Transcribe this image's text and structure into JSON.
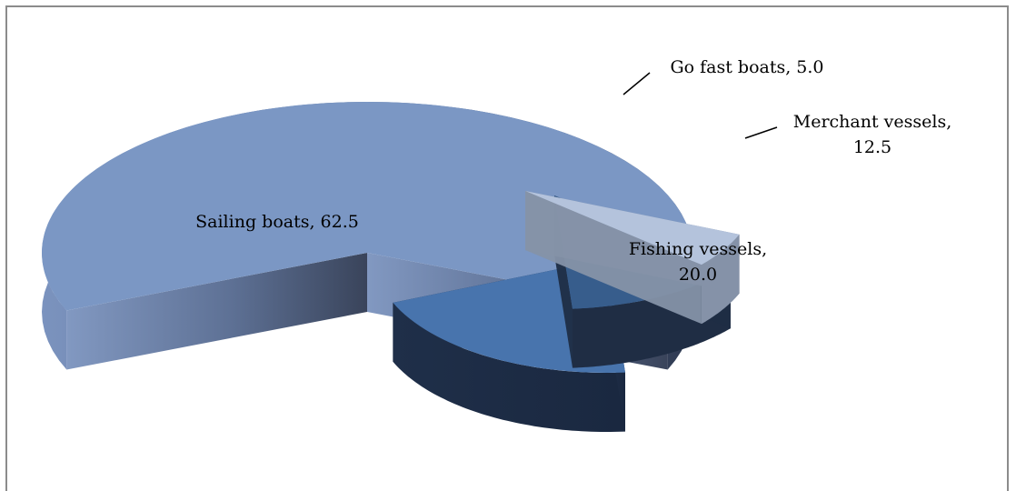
{
  "chart_data": {
    "type": "pie",
    "title": "",
    "slices": [
      {
        "label": "Sailing boats",
        "value": 62.5,
        "label_lines": [
          "Sailing boats, 62.5"
        ]
      },
      {
        "label": "Fishing vessels",
        "value": 20.0,
        "label_lines": [
          "Fishing vessels,",
          "20.0"
        ]
      },
      {
        "label": "Merchant vessels",
        "value": 12.5,
        "label_lines": [
          "Merchant vessels,",
          "12.5"
        ]
      },
      {
        "label": "Go fast boats",
        "value": 5.0,
        "label_lines": [
          "Go fast boats, 5.0"
        ]
      }
    ],
    "colors": {
      "Sailing boats": "#7b97c4",
      "Fishing vessels": "#4874ad",
      "Merchant vessels": "#375d8c",
      "Go fast boats": "#b4c3dc"
    },
    "style": "3d-exploded",
    "legend": "none"
  }
}
